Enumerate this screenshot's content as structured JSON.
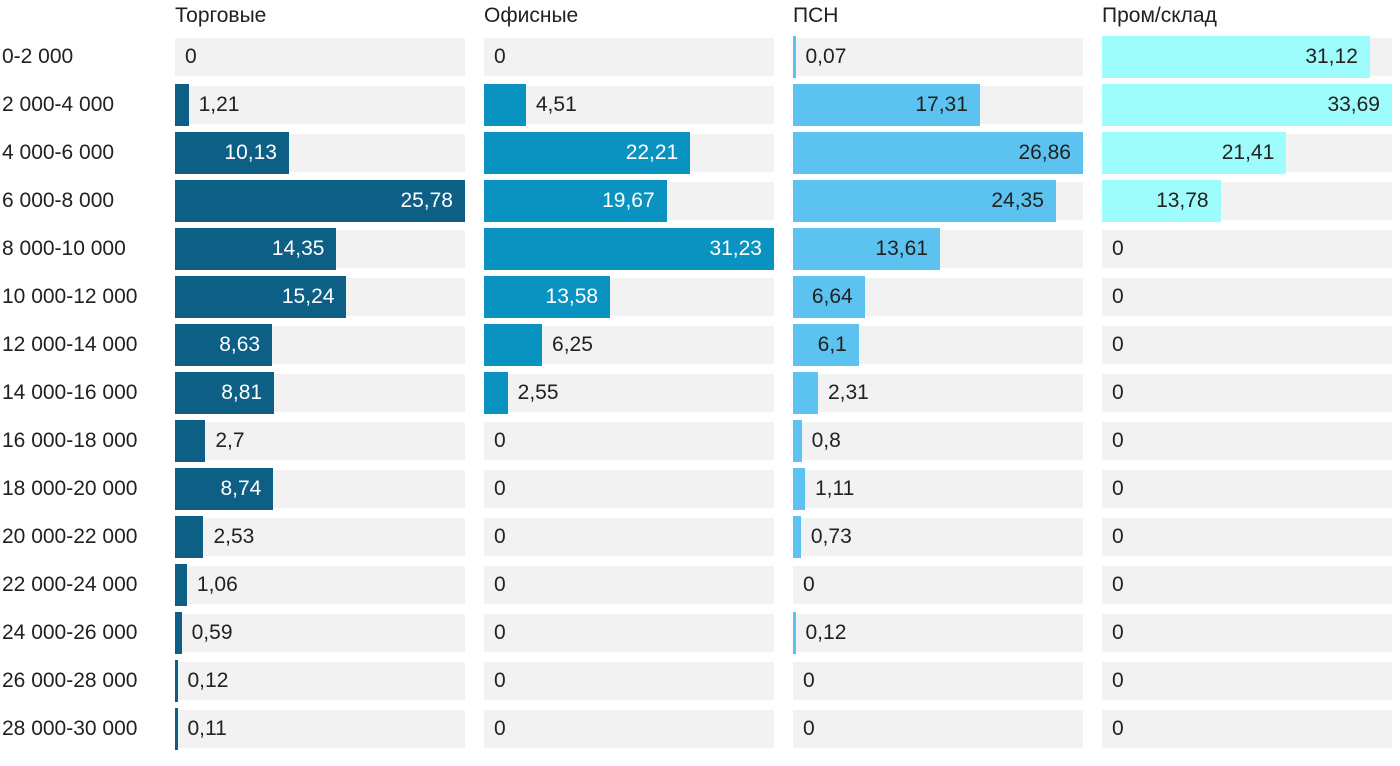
{
  "chart_data": {
    "type": "bar",
    "orientation": "horizontal",
    "title": "",
    "xlabel": "",
    "ylabel": "",
    "decimal_separator": ",",
    "grid": false,
    "legend_position": "column-headers",
    "track_color": "#f2f2f2",
    "text_color": "#212121",
    "categories": [
      "0-2 000",
      "2 000-4 000",
      "4 000-6 000",
      "6 000-8 000",
      "8 000-10 000",
      "10 000-12 000",
      "12 000-14 000",
      "14 000-16 000",
      "16 000-18 000",
      "18 000-20 000",
      "20 000-22 000",
      "22 000-24 000",
      "24 000-26 000",
      "26 000-28 000",
      "28 000-30 000"
    ],
    "series": [
      {
        "name": "Торговые",
        "color": "#0e5f86",
        "inside_label_color": "#ffffff",
        "axis_max": 25.78,
        "values": [
          0,
          1.21,
          10.13,
          25.78,
          14.35,
          15.24,
          8.63,
          8.81,
          2.7,
          8.74,
          2.53,
          1.06,
          0.59,
          0.12,
          0.11
        ]
      },
      {
        "name": "Офисные",
        "color": "#0a92c0",
        "inside_label_color": "#ffffff",
        "axis_max": 31.23,
        "values": [
          0,
          4.51,
          22.21,
          19.67,
          31.23,
          13.58,
          6.25,
          2.55,
          0,
          0,
          0,
          0,
          0,
          0,
          0
        ]
      },
      {
        "name": "ПСН",
        "color": "#5cc3f0",
        "inside_label_color": "#212121",
        "axis_max": 26.86,
        "values": [
          0.07,
          17.31,
          26.86,
          24.35,
          13.61,
          6.64,
          6.1,
          2.31,
          0.8,
          1.11,
          0.73,
          0,
          0.12,
          0,
          0
        ]
      },
      {
        "name": "Пром/склад",
        "color": "#9ffcfc",
        "inside_label_color": "#212121",
        "axis_max": 33.69,
        "values": [
          31.12,
          33.69,
          21.41,
          13.78,
          0,
          0,
          0,
          0,
          0,
          0,
          0,
          0,
          0,
          0,
          0
        ]
      }
    ]
  }
}
